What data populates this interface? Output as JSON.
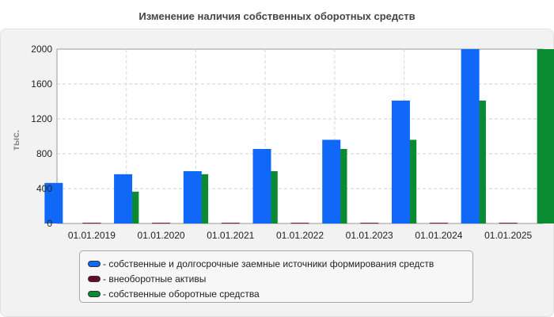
{
  "chart_data": {
    "type": "bar",
    "title": "Изменение наличия собственных оборотных средств",
    "ylabel": "тыс.",
    "xlabel": "",
    "categories": [
      "01.01.2019",
      "01.01.2020",
      "01.01.2021",
      "01.01.2022",
      "01.01.2023",
      "01.01.2024",
      "01.01.2025"
    ],
    "ylim": [
      0,
      2000
    ],
    "yticks": [
      "0",
      "400",
      "800",
      "1200",
      "1600",
      "2000"
    ],
    "grid": true,
    "legend_position": "bottom",
    "series": [
      {
        "name": "- собственные и долгосрочные заемные источники формирования средств",
        "color": "#0f68f7",
        "values": [
          465,
          565,
          600,
          855,
          960,
          1410,
          2000
        ]
      },
      {
        "name": "- внеоборотные активы",
        "color": "#6b0a2e",
        "values": [
          8,
          8,
          8,
          8,
          8,
          8,
          8
        ]
      },
      {
        "name": "- собственные оборотные средства",
        "color": "#0a8a31",
        "values": [
          365,
          565,
          600,
          855,
          960,
          1410,
          2000
        ]
      }
    ]
  }
}
